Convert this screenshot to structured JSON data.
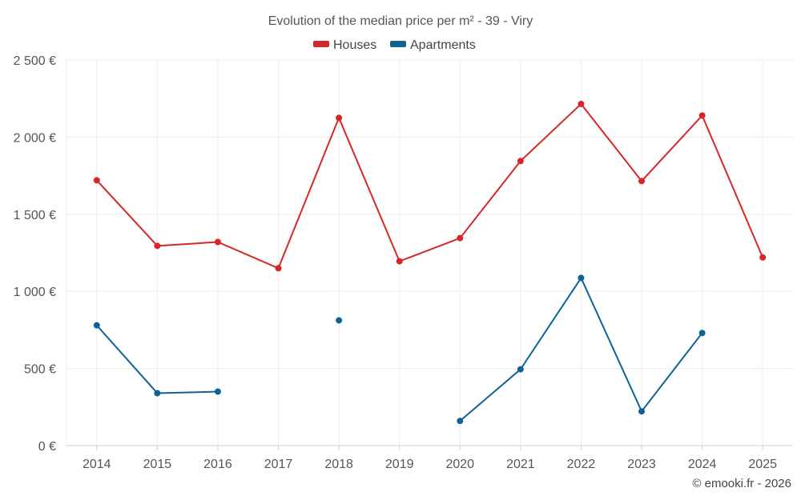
{
  "chart_data": {
    "type": "line",
    "title": "Evolution of the median price per m² - 39 - Viry",
    "categories": [
      "2014",
      "2015",
      "2016",
      "2017",
      "2018",
      "2019",
      "2020",
      "2021",
      "2022",
      "2023",
      "2024",
      "2025"
    ],
    "series": [
      {
        "name": "Houses",
        "color": "#d62728",
        "values": [
          1720,
          1295,
          1320,
          1150,
          2125,
          1195,
          1345,
          1845,
          2215,
          1715,
          2140,
          1220
        ]
      },
      {
        "name": "Apartments",
        "color": "#0e6396",
        "values": [
          780,
          340,
          350,
          null,
          812,
          null,
          160,
          495,
          1087,
          222,
          730,
          null
        ]
      }
    ],
    "ylim": [
      0,
      2500
    ],
    "yticks": [
      0,
      500,
      1000,
      1500,
      2000,
      2500
    ],
    "ytick_labels": [
      "0 €",
      "500 €",
      "1 000 €",
      "1 500 €",
      "2 000 €",
      "2 500 €"
    ],
    "xlabel": "",
    "ylabel": "",
    "grid": true,
    "legend_position": "top-center"
  },
  "credit": "© emooki.fr - 2026"
}
